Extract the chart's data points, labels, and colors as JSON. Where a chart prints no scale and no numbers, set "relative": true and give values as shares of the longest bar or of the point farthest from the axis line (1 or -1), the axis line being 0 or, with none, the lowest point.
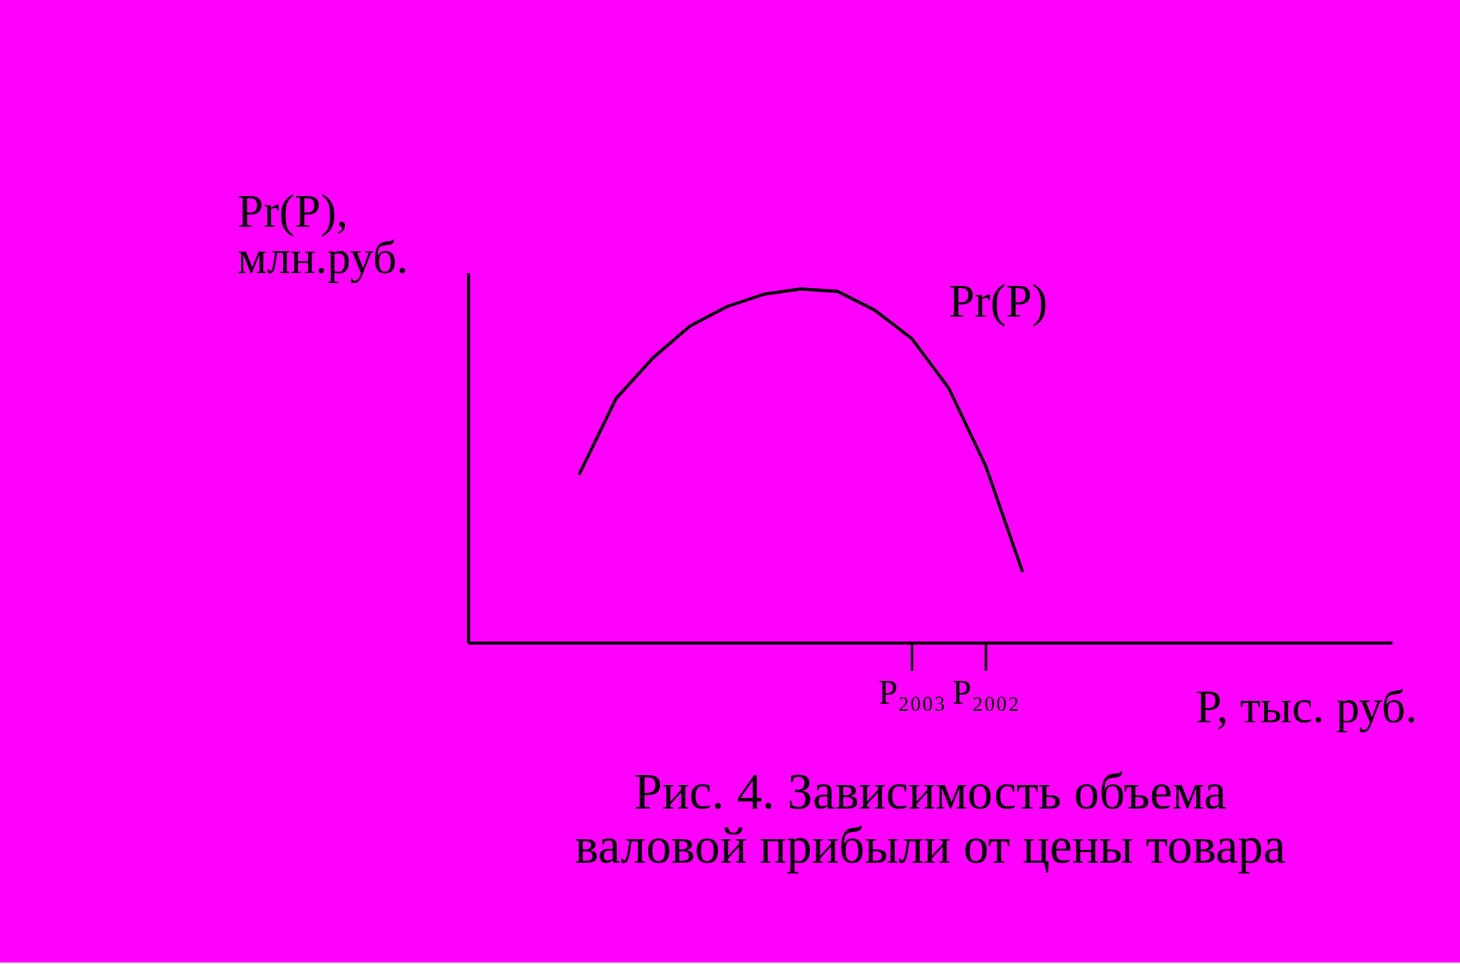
{
  "chart_data": {
    "type": "line",
    "relative": true,
    "title": "Рис. 4. Зависимость объема валовой прибыли от цены товара",
    "xlabel": "P, тыс. руб.",
    "ylabel": "Pr(P), млн.руб.",
    "categories": [
      null,
      null,
      null,
      null,
      null,
      null,
      null,
      null,
      null,
      null,
      null,
      null,
      "P₂₀₀₃",
      null,
      "P₂₀₀₂",
      null,
      null,
      null,
      null,
      null,
      null,
      null,
      null,
      null,
      null,
      null
    ],
    "tick_labels": "x",
    "grid": false,
    "legend": false,
    "marker": "none",
    "line_style": "solid",
    "series": [
      {
        "name": "Pr(P)",
        "color": "#000000",
        "values": [
          null,
          null,
          null,
          0.475,
          0.69,
          0.805,
          0.895,
          0.95,
          0.985,
          1.0,
          0.993,
          0.94,
          0.86,
          0.72,
          0.5,
          0.2,
          null,
          null,
          null,
          null,
          null,
          null,
          null,
          null,
          null,
          null
        ]
      }
    ]
  }
}
